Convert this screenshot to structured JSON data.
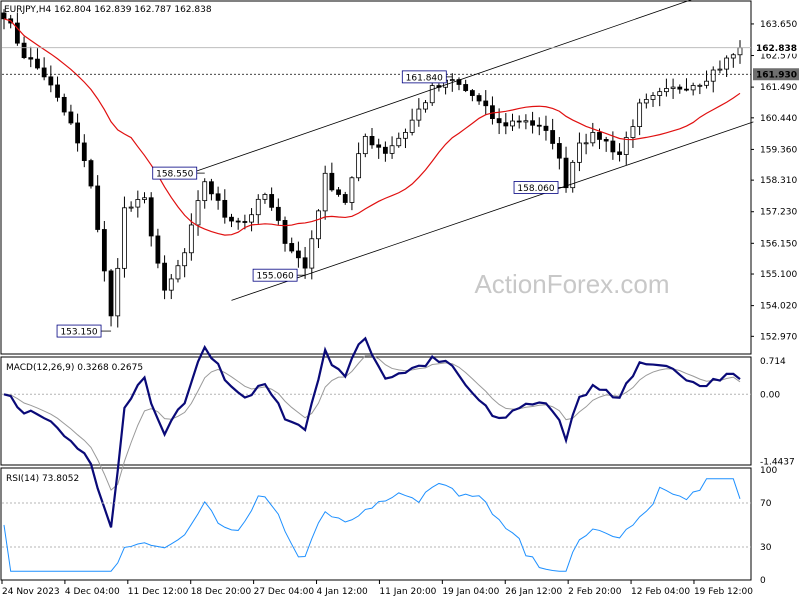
{
  "chart_data": {
    "type": "candlestick",
    "instrument_header": "EURJPY,H4  162.804 162.839 162.787 162.838",
    "watermark": "ActionForex.com",
    "colors": {
      "candle": "#000000",
      "ma": "#e01010",
      "channel": "#000000",
      "macd": "#0a0a78",
      "signal": "#9a9a9a",
      "rsi": "#1e90ff",
      "label_border": "#000080",
      "label_text": "#0a1a6e",
      "dotted": "#b4b4b4"
    },
    "price_axis": {
      "ylim": [
        152.4,
        164.4
      ],
      "ticks": [
        "163.650",
        "162.570",
        "161.490",
        "160.440",
        "159.360",
        "158.310",
        "157.230",
        "156.150",
        "155.100",
        "154.020",
        "152.970"
      ]
    },
    "current_price": "162.838",
    "reference_level": "161.930",
    "x_tick_labels": [
      "24 Nov 2023",
      "4 Dec 04:00",
      "11 Dec 12:00",
      "18 Dec 20:00",
      "27 Dec 04:00",
      "4 Jan 12:00",
      "11 Jan 20:00",
      "19 Jan 04:00",
      "26 Jan 12:00",
      "2 Feb 20:00",
      "12 Feb 04:00",
      "19 Feb 12:00"
    ],
    "annotations": [
      {
        "text": "161.840",
        "value": 161.84,
        "bar": 67
      },
      {
        "text": "158.550",
        "value": 158.55,
        "bar": 30
      },
      {
        "text": "155.060",
        "value": 155.06,
        "bar": 45
      },
      {
        "text": "153.150",
        "value": 153.15,
        "bar": 16
      },
      {
        "text": "158.060",
        "value": 158.06,
        "bar": 84
      }
    ],
    "channel": {
      "lower": [
        [
          34,
          154.2
        ],
        [
          112,
          160.3
        ]
      ],
      "upper": [
        [
          26,
          158.4
        ],
        [
          103,
          164.5
        ]
      ]
    },
    "close_anchors": [
      [
        0,
        164.0
      ],
      [
        3,
        162.6
      ],
      [
        6,
        161.9
      ],
      [
        10,
        160.2
      ],
      [
        13,
        158.2
      ],
      [
        16,
        153.6
      ],
      [
        18,
        157.3
      ],
      [
        21,
        157.6
      ],
      [
        24,
        154.4
      ],
      [
        27,
        155.8
      ],
      [
        30,
        158.3
      ],
      [
        33,
        157.1
      ],
      [
        36,
        156.9
      ],
      [
        39,
        157.8
      ],
      [
        42,
        156.3
      ],
      [
        45,
        155.3
      ],
      [
        48,
        158.4
      ],
      [
        51,
        157.6
      ],
      [
        54,
        159.8
      ],
      [
        57,
        159.3
      ],
      [
        60,
        160.0
      ],
      [
        64,
        161.4
      ],
      [
        67,
        161.7
      ],
      [
        70,
        161.2
      ],
      [
        74,
        160.2
      ],
      [
        78,
        160.4
      ],
      [
        82,
        159.7
      ],
      [
        84,
        158.2
      ],
      [
        86,
        159.7
      ],
      [
        89,
        159.8
      ],
      [
        92,
        159.2
      ],
      [
        95,
        160.8
      ],
      [
        98,
        161.2
      ],
      [
        101,
        161.5
      ],
      [
        104,
        161.7
      ],
      [
        107,
        162.2
      ],
      [
        110,
        162.8
      ]
    ],
    "bars": 111,
    "ma_period": 20,
    "macd": {
      "label": "MACD(12,26,9) 0.3268 0.2675",
      "macd_value": 0.3268,
      "signal_value": 0.2675,
      "ticks": [
        "0.714",
        "0.00",
        "-1.4437"
      ],
      "ylim": [
        -1.5,
        0.78
      ]
    },
    "rsi": {
      "label": "RSI(14) 73.8052",
      "value": 73.8052,
      "ticks": [
        "100",
        "70",
        "30",
        "0"
      ],
      "ylim": [
        0,
        100
      ]
    }
  }
}
